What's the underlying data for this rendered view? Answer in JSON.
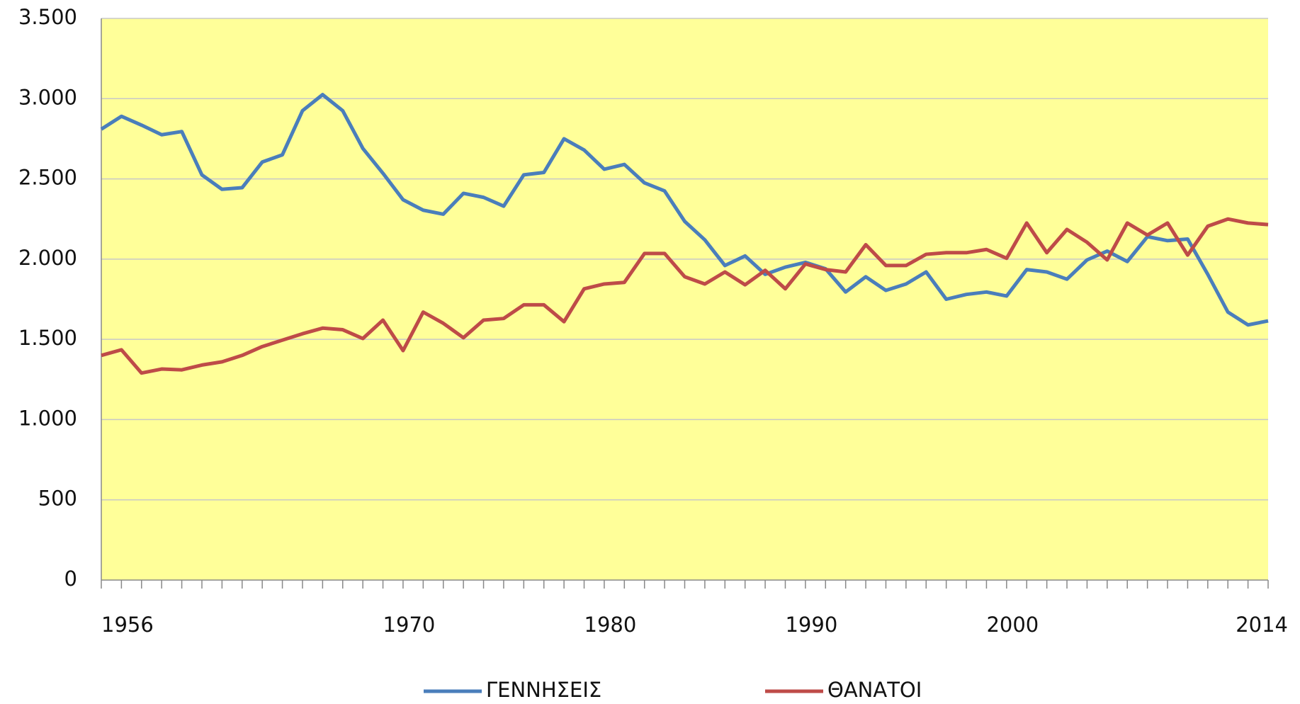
{
  "chart_data": {
    "type": "line",
    "x": [
      1956,
      1957,
      1958,
      1959,
      1960,
      1961,
      1962,
      1963,
      1964,
      1965,
      1966,
      1967,
      1968,
      1969,
      1970,
      1971,
      1972,
      1973,
      1974,
      1975,
      1976,
      1977,
      1978,
      1979,
      1980,
      1981,
      1982,
      1983,
      1984,
      1985,
      1986,
      1987,
      1988,
      1989,
      1990,
      1991,
      1992,
      1993,
      1994,
      1995,
      1996,
      1997,
      1998,
      1999,
      2000,
      2001,
      2002,
      2003,
      2004,
      2005,
      2006,
      2007,
      2008,
      2009,
      2010,
      2011,
      2012,
      2013,
      2014
    ],
    "series": [
      {
        "name": "ΓΕΝΝΗΣΕΙΣ",
        "color": "#4a7ebb",
        "values": [
          2810,
          2890,
          2835,
          2775,
          2795,
          2525,
          2435,
          2445,
          2605,
          2650,
          2925,
          3025,
          2925,
          2690,
          2535,
          2370,
          2305,
          2280,
          2410,
          2385,
          2330,
          2525,
          2540,
          2750,
          2680,
          2560,
          2590,
          2475,
          2425,
          2235,
          2120,
          1960,
          2020,
          1905,
          1950,
          1980,
          1940,
          1795,
          1890,
          1805,
          1845,
          1920,
          1750,
          1780,
          1795,
          1770,
          1935,
          1920,
          1875,
          1995,
          2050,
          1985,
          2140,
          2115,
          2125,
          1905,
          1670,
          1590,
          1615
        ]
      },
      {
        "name": "ΘΑΝΑΤΟΙ",
        "color": "#be4b48",
        "values": [
          1400,
          1435,
          1290,
          1315,
          1310,
          1340,
          1360,
          1400,
          1455,
          1495,
          1535,
          1570,
          1560,
          1505,
          1620,
          1430,
          1670,
          1600,
          1510,
          1620,
          1630,
          1715,
          1715,
          1610,
          1815,
          1845,
          1855,
          2035,
          2035,
          1890,
          1845,
          1920,
          1840,
          1930,
          1815,
          1970,
          1935,
          1920,
          2090,
          1960,
          1960,
          2030,
          2040,
          2040,
          2060,
          2005,
          2225,
          2040,
          2185,
          2105,
          1995,
          2225,
          2150,
          2225,
          2025,
          2205,
          2250,
          2225,
          2215
        ]
      }
    ],
    "xlim": [
      1956,
      2014
    ],
    "xticks": [
      1956,
      1970,
      1980,
      1990,
      2000,
      2014
    ],
    "ylim": [
      0,
      3500
    ],
    "yticks": [
      0,
      500,
      {
        "value": 1000,
        "label": "1.000"
      },
      {
        "value": 1500,
        "label": "1.500"
      },
      {
        "value": 2000,
        "label": "2.000"
      },
      {
        "value": 2500,
        "label": "2.500"
      },
      {
        "value": 3000,
        "label": "3.000"
      },
      {
        "value": 3500,
        "label": "3.500"
      }
    ],
    "grid": true,
    "legend": "bottom",
    "plot_background": "#ffff99"
  }
}
